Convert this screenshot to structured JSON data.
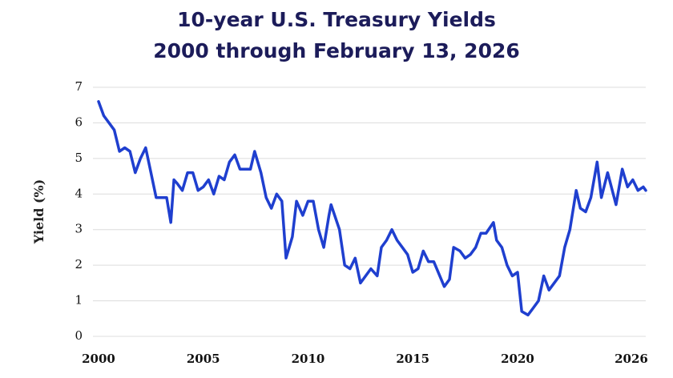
{
  "chart_data": {
    "type": "line",
    "title": "10-year U.S. Treasury Yields",
    "subtitle": "2000 through February 13, 2026",
    "y_label": "Yield (%)",
    "x": [
      2000.0,
      2000.25,
      2000.5,
      2000.75,
      2001.0,
      2001.25,
      2001.5,
      2001.75,
      2002.0,
      2002.25,
      2002.5,
      2002.75,
      2003.0,
      2003.25,
      2003.45,
      2003.6,
      2003.75,
      2004.0,
      2004.25,
      2004.5,
      2004.75,
      2005.0,
      2005.25,
      2005.5,
      2005.75,
      2006.0,
      2006.25,
      2006.5,
      2006.75,
      2007.0,
      2007.25,
      2007.45,
      2007.75,
      2008.0,
      2008.25,
      2008.5,
      2008.75,
      2008.95,
      2009.25,
      2009.45,
      2009.75,
      2010.0,
      2010.25,
      2010.5,
      2010.75,
      2011.0,
      2011.1,
      2011.5,
      2011.75,
      2012.0,
      2012.25,
      2012.5,
      2012.75,
      2013.0,
      2013.3,
      2013.5,
      2013.75,
      2014.0,
      2014.25,
      2014.5,
      2014.75,
      2015.0,
      2015.25,
      2015.5,
      2015.75,
      2016.0,
      2016.5,
      2016.75,
      2016.95,
      2017.25,
      2017.5,
      2017.75,
      2018.0,
      2018.25,
      2018.5,
      2018.85,
      2019.0,
      2019.25,
      2019.5,
      2019.75,
      2020.0,
      2020.2,
      2020.5,
      2020.75,
      2021.0,
      2021.25,
      2021.5,
      2021.75,
      2022.0,
      2022.25,
      2022.5,
      2022.8,
      2023.0,
      2023.25,
      2023.5,
      2023.8,
      2024.0,
      2024.3,
      2024.7,
      2025.0,
      2025.25,
      2025.5,
      2025.75,
      2026.0,
      2026.12
    ],
    "series": [
      {
        "name": "10-year yield",
        "color": "#1f3fcf",
        "values": [
          6.6,
          6.2,
          6.0,
          5.8,
          5.2,
          5.3,
          5.2,
          4.6,
          5.0,
          5.3,
          4.6,
          3.9,
          3.9,
          3.9,
          3.2,
          4.4,
          4.3,
          4.1,
          4.6,
          4.6,
          4.1,
          4.2,
          4.4,
          4.0,
          4.5,
          4.4,
          4.9,
          5.1,
          4.7,
          4.7,
          4.7,
          5.2,
          4.6,
          3.9,
          3.6,
          4.0,
          3.8,
          2.2,
          2.8,
          3.8,
          3.4,
          3.8,
          3.8,
          3.0,
          2.5,
          3.4,
          3.7,
          3.0,
          2.0,
          1.9,
          2.2,
          1.5,
          1.7,
          1.9,
          1.7,
          2.5,
          2.7,
          3.0,
          2.7,
          2.5,
          2.3,
          1.8,
          1.9,
          2.4,
          2.1,
          2.1,
          1.4,
          1.6,
          2.5,
          2.4,
          2.2,
          2.3,
          2.5,
          2.9,
          2.9,
          3.2,
          2.7,
          2.5,
          2.0,
          1.7,
          1.8,
          0.7,
          0.6,
          0.8,
          1.0,
          1.7,
          1.3,
          1.5,
          1.7,
          2.5,
          3.0,
          4.1,
          3.6,
          3.5,
          3.9,
          4.9,
          3.9,
          4.6,
          3.7,
          4.7,
          4.2,
          4.4,
          4.1,
          4.2,
          4.1
        ]
      }
    ],
    "xlim": [
      2000,
      2026.12
    ],
    "xticks": [
      2000,
      2005,
      2010,
      2015,
      2020,
      2026
    ],
    "ylim": [
      0,
      7
    ],
    "yticks": [
      0,
      1,
      2,
      3,
      4,
      5,
      6,
      7
    ],
    "grid": true
  }
}
